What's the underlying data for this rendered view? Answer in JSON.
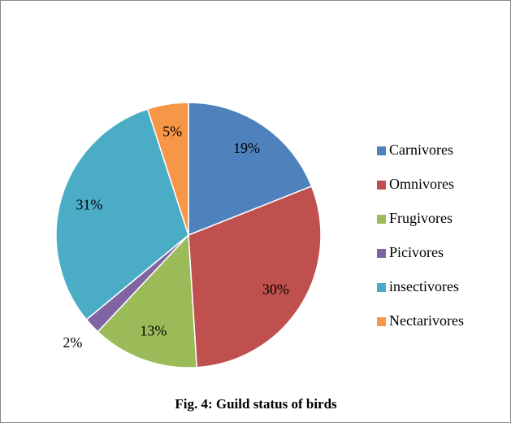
{
  "chart_data": {
    "type": "pie",
    "title": "Fig. 4: Guild status of birds",
    "categories": [
      "Carnivores",
      "Omnivores",
      "Frugivores",
      "Picivores",
      "insectivores",
      "Nectarivores"
    ],
    "values": [
      19,
      30,
      13,
      2,
      31,
      5
    ],
    "value_labels": [
      "19%",
      "30%",
      "13%",
      "2%",
      "31%",
      "5%"
    ],
    "colors": [
      "#4f81bd",
      "#c0504d",
      "#9bbb59",
      "#8064a2",
      "#4bacc6",
      "#f79646"
    ],
    "legend": "right"
  }
}
